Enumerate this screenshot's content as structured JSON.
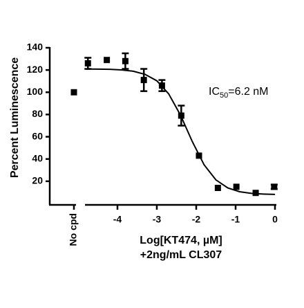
{
  "chart_data": {
    "type": "scatter",
    "ylabel": "Percent Luminescence",
    "xlabel": [
      "Log[KT474, µM]",
      "+2ng/mL CL307"
    ],
    "annotation": {
      "text": "IC",
      "sub": "50",
      "rest": "=6.2 nM"
    },
    "color": "#000000",
    "control": {
      "label": "No cpd",
      "value": 100
    },
    "points": {
      "x": [
        -4.75,
        -4.27,
        -3.8,
        -3.33,
        -2.87,
        -2.38,
        -1.93,
        -1.45,
        -0.98,
        -0.49,
        -0.02
      ],
      "values": [
        126,
        129,
        128,
        111,
        106,
        79,
        43,
        14,
        15,
        9.5,
        15
      ],
      "errors": [
        5,
        null,
        7,
        10,
        5,
        9,
        null,
        null,
        null,
        null,
        2
      ]
    },
    "fit": {
      "x": [
        -4.8,
        -4.5,
        -4.2,
        -3.9,
        -3.6,
        -3.3,
        -3.0,
        -2.7,
        -2.4,
        -2.1,
        -1.8,
        -1.5,
        -1.2,
        -0.9,
        -0.6,
        -0.3,
        0
      ],
      "values": [
        120.9,
        120.8,
        120.6,
        120.1,
        118.9,
        116.1,
        110.3,
        98.6,
        79.5,
        55.7,
        34.8,
        21.2,
        14.0,
        10.6,
        9.1,
        8.5,
        8.2
      ]
    },
    "xlim": [
      -4.8,
      0
    ],
    "xticks": [
      -4,
      -3,
      -2,
      -1,
      0
    ],
    "ylim": [
      0,
      140
    ],
    "yticks": [
      20,
      40,
      60,
      80,
      100,
      120,
      140
    ]
  }
}
